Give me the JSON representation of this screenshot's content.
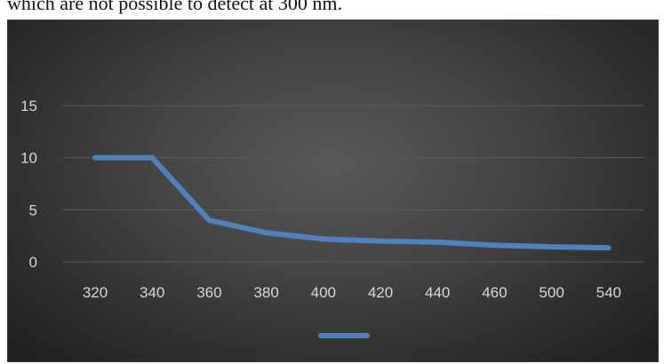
{
  "caption": {
    "text": "which are not possible to detect at 300 nm."
  },
  "chart_data": {
    "type": "line",
    "categories": [
      "320",
      "340",
      "360",
      "380",
      "400",
      "420",
      "440",
      "460",
      "500",
      "540"
    ],
    "series": [
      {
        "values": [
          10,
          10,
          4,
          2.8,
          2.2,
          2.0,
          1.9,
          1.6,
          1.45,
          1.35
        ],
        "color": "#4f81bd"
      }
    ],
    "yticks": [
      0,
      5,
      10,
      15
    ],
    "ylim": [
      0,
      15
    ],
    "grid": true,
    "legend_position": "bottom",
    "background": "#3f3f3f",
    "tick_color": "#d9d9d9",
    "gridline_color": "#5a5a5a"
  }
}
